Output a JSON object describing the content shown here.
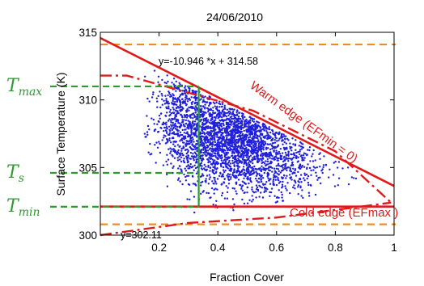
{
  "chart_data": {
    "type": "scatter",
    "title": "24/06/2010",
    "xlabel": "Fraction Cover",
    "ylabel": "Surface Temperature (K)",
    "xlim": [
      0,
      1
    ],
    "ylim": [
      300,
      315
    ],
    "xticks": [
      "0.2",
      "0.4",
      "0.6",
      "0.8",
      "1"
    ],
    "yticks": [
      "300",
      "305",
      "310",
      "315"
    ],
    "grid": false,
    "point_color": "#1f1fdc",
    "scatter_cloud": {
      "description_x_range": [
        0.15,
        0.88
      ],
      "ts_range_approx": [
        301.5,
        313.8
      ]
    },
    "warm_edge": {
      "label": "Warm edge (EFmin = 0)",
      "equation": "y=-10.946 *x + 314.58",
      "slope": -10.946,
      "intercept": 314.58,
      "color": "#e0191b"
    },
    "cold_edge": {
      "label": "Cold edge (EFmax )",
      "equation": "y=302.11",
      "value": 302.11,
      "color": "#e0191b"
    },
    "orange_limits": {
      "upper": 314.1,
      "lower": 300.8,
      "color": "#f08a24"
    },
    "guide_lines": {
      "color": "#2e9a2e",
      "fc": 0.335,
      "T_max": {
        "base": "T",
        "sub": "max",
        "value": 311.0
      },
      "T_s": {
        "base": "T",
        "sub": "s",
        "value": 304.6
      },
      "T_min": {
        "base": "T",
        "sub": "min",
        "value": 302.1
      }
    }
  }
}
